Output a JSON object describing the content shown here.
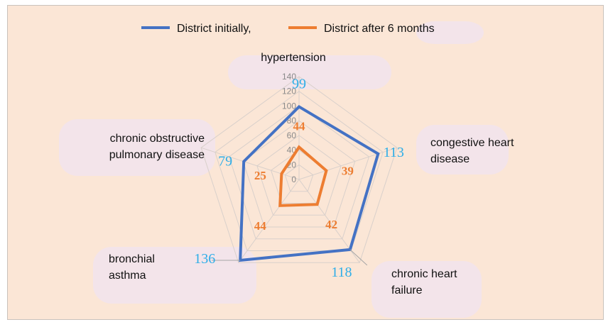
{
  "chart_data": {
    "type": "radar",
    "categories": [
      "hypertension",
      "congestive heart disease",
      "chronic heart failure",
      "bronchial asthma",
      "chronic obstructive pulmonary disease"
    ],
    "category_lines": [
      [
        "hypertension"
      ],
      [
        "congestive heart",
        "disease"
      ],
      [
        "chronic heart",
        "failure"
      ],
      [
        "bronchial",
        "asthma"
      ],
      [
        "chronic obstructive",
        "pulmonary disease"
      ]
    ],
    "series": [
      {
        "name": "District initially,",
        "values": [
          99,
          113,
          118,
          136,
          79
        ],
        "color": "#4472c4"
      },
      {
        "name": "District after 6 months",
        "values": [
          44,
          39,
          42,
          44,
          25
        ],
        "color": "#ed7d31"
      }
    ],
    "rlim": [
      0,
      140
    ],
    "ticks": [
      "0",
      "20",
      "40",
      "60",
      "80",
      "100",
      "120",
      "140"
    ],
    "grid": true,
    "legend_position": "top"
  }
}
